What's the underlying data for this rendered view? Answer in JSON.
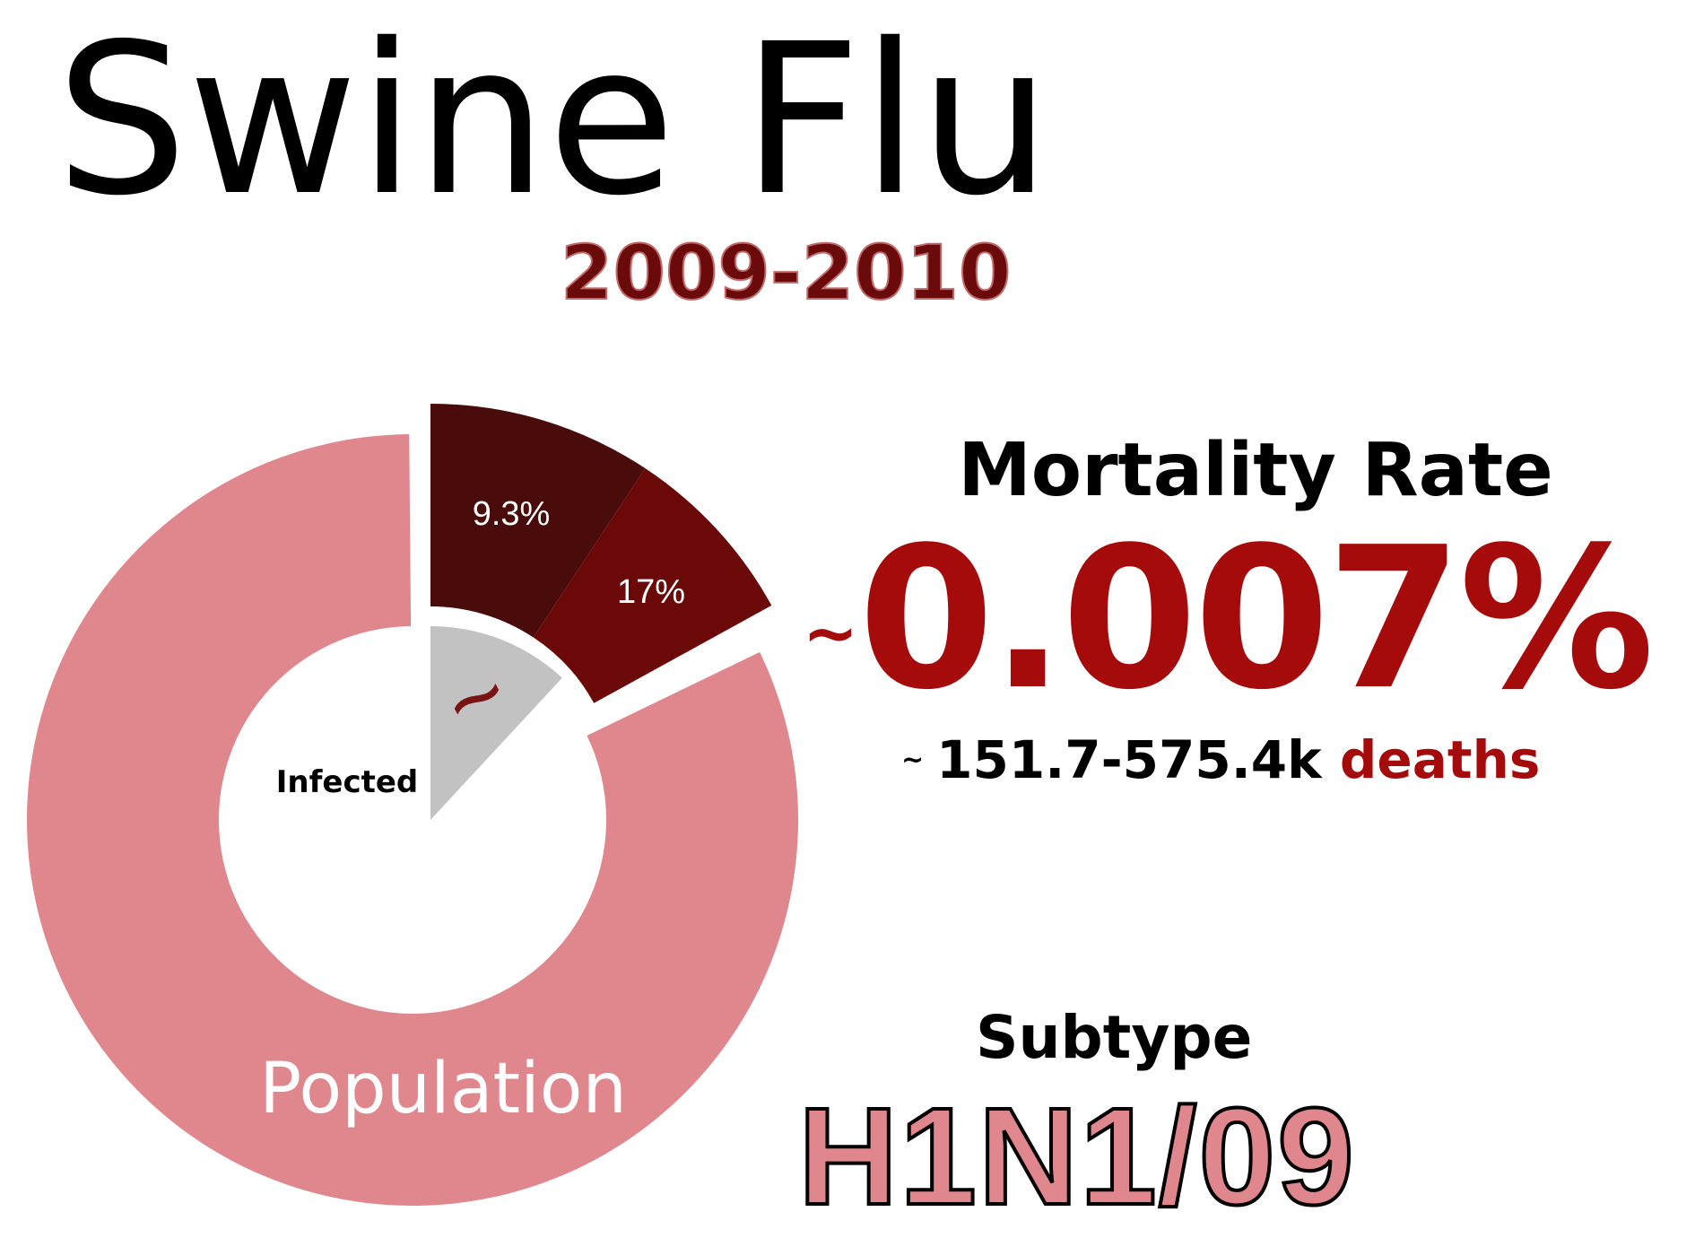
{
  "title": "Swine Flu",
  "years": "2009-2010",
  "mortality": {
    "heading": "Mortality Rate",
    "prefix": "~",
    "value": "0.007%",
    "deaths_prefix": "~",
    "deaths_range": "151.7-575.4k",
    "deaths_word": "deaths"
  },
  "subtype": {
    "heading": "Subtype",
    "value": "H1N1/09"
  },
  "colors": {
    "population": "#e0878d",
    "infected_low": "#4a0b0b",
    "infected_high": "#6b0909",
    "inner_wedge": "#c2c2c2",
    "tilde": "#7a1414",
    "accent": "#a60b0b"
  },
  "chart_data": {
    "type": "pie",
    "style": "nested donut with exploded infected wedge",
    "outer_ring": {
      "label": "Population",
      "slices": [
        {
          "label": "9.3%",
          "value": 9.3
        },
        {
          "label": "17%",
          "value": 7.7
        },
        {
          "label": "Population",
          "value": 83.0
        }
      ]
    },
    "inner_ring": {
      "label": "Infected",
      "slices": [
        {
          "label": "~",
          "value": 17.0
        }
      ]
    },
    "labels": {
      "slice_a": "9.3%",
      "slice_b": "17%",
      "inner_tilde": "~",
      "inner_label": "Infected",
      "outer_label": "Population"
    }
  }
}
